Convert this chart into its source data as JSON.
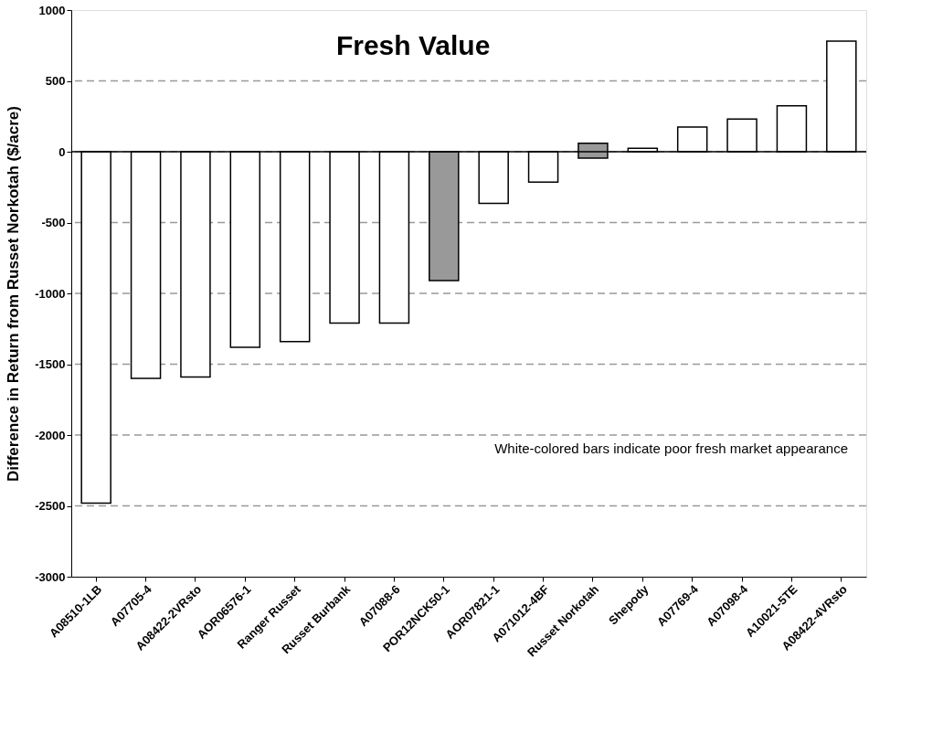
{
  "chart_data": {
    "type": "bar",
    "title": "Fresh Value",
    "ylabel": "Difference in Return from Russet Norkotah ($/acre)",
    "categories": [
      "A08510-1LB",
      "A07705-4",
      "A08422-2VRsto",
      "AOR06576-1",
      "Ranger Russet",
      "Russet Burbank",
      "A07088-6",
      "POR12NCK50-1",
      "AOR07821-1",
      "A071012-4BF",
      "Russet Norkotah",
      "Shepody",
      "A07769-4",
      "A07098-4",
      "A10021-5TE",
      "A08422-4VRsto"
    ],
    "values": [
      -2480,
      -1600,
      -1590,
      -1380,
      -1340,
      -1210,
      -1210,
      -910,
      -365,
      -215,
      105,
      25,
      175,
      230,
      325,
      780
    ],
    "base": [
      0,
      0,
      0,
      0,
      0,
      0,
      0,
      0,
      0,
      0,
      -45,
      0,
      0,
      0,
      0,
      0
    ],
    "colors": [
      "#ffffff",
      "#ffffff",
      "#ffffff",
      "#ffffff",
      "#ffffff",
      "#ffffff",
      "#ffffff",
      "#999999",
      "#ffffff",
      "#ffffff",
      "#999999",
      "#ffffff",
      "#ffffff",
      "#ffffff",
      "#ffffff",
      "#ffffff"
    ],
    "ylim": [
      -3000,
      1000
    ],
    "yticks": [
      -3000,
      -2500,
      -2000,
      -1500,
      -1000,
      -500,
      0,
      500,
      1000
    ],
    "grid": "y",
    "ref_lines": [
      {
        "axis": "y",
        "value": 0,
        "color": "#000000",
        "line_style": "solid"
      }
    ],
    "annotations": [
      "White-colored bars indicate poor fresh market appearance"
    ]
  }
}
